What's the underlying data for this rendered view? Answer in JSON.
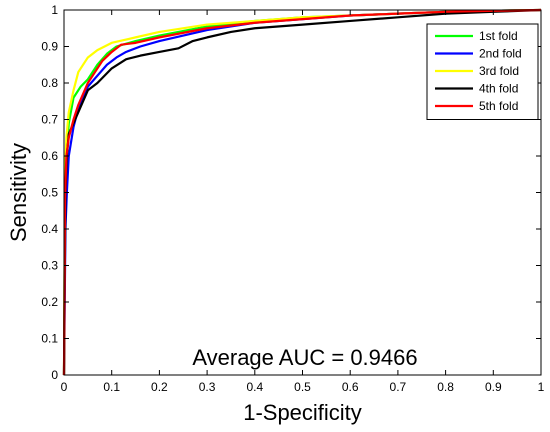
{
  "chart_data": {
    "type": "line",
    "title": "",
    "xlabel": "1-Specificity",
    "ylabel": "Sensitivity",
    "xlim": [
      0,
      1
    ],
    "ylim": [
      0,
      1
    ],
    "xticks": [
      0,
      0.1,
      0.2,
      0.3,
      0.4,
      0.5,
      0.6,
      0.7,
      0.8,
      0.9,
      1
    ],
    "yticks": [
      0,
      0.1,
      0.2,
      0.3,
      0.4,
      0.5,
      0.6,
      0.7,
      0.8,
      0.9,
      1
    ],
    "xtick_labels": [
      "0",
      "0.1",
      "0.2",
      "0.3",
      "0.4",
      "0.5",
      "0.6",
      "0.7",
      "0.8",
      "0.9",
      "1"
    ],
    "ytick_labels": [
      "0",
      "0.1",
      "0.2",
      "0.3",
      "0.4",
      "0.5",
      "0.6",
      "0.7",
      "0.8",
      "0.9",
      "1"
    ],
    "grid": false,
    "legend_position": "top-right",
    "annotation": "Average AUC = 0.9466",
    "series": [
      {
        "name": "1st fold",
        "color": "#00ff00",
        "x": [
          0,
          0.002,
          0.005,
          0.01,
          0.02,
          0.035,
          0.05,
          0.07,
          0.09,
          0.11,
          0.15,
          0.2,
          0.3,
          0.4,
          0.5,
          0.6,
          0.7,
          0.8,
          0.9,
          1.0
        ],
        "y": [
          0,
          0.45,
          0.6,
          0.69,
          0.76,
          0.79,
          0.81,
          0.85,
          0.88,
          0.9,
          0.915,
          0.93,
          0.955,
          0.97,
          0.98,
          0.985,
          0.99,
          0.995,
          0.998,
          1.0
        ]
      },
      {
        "name": "2nd fold",
        "color": "#0000ff",
        "x": [
          0,
          0.003,
          0.006,
          0.01,
          0.02,
          0.03,
          0.05,
          0.07,
          0.09,
          0.11,
          0.13,
          0.16,
          0.2,
          0.25,
          0.3,
          0.4,
          0.5,
          0.6,
          0.7,
          0.8,
          0.9,
          1.0
        ],
        "y": [
          0,
          0.4,
          0.5,
          0.6,
          0.68,
          0.73,
          0.79,
          0.82,
          0.85,
          0.87,
          0.885,
          0.9,
          0.915,
          0.93,
          0.945,
          0.965,
          0.975,
          0.985,
          0.99,
          0.995,
          0.998,
          1.0
        ]
      },
      {
        "name": "3rd fold",
        "color": "#ffff00",
        "x": [
          0,
          0.002,
          0.005,
          0.01,
          0.02,
          0.03,
          0.05,
          0.07,
          0.1,
          0.15,
          0.2,
          0.3,
          0.4,
          0.5,
          0.6,
          0.7,
          0.8,
          0.9,
          1.0
        ],
        "y": [
          0,
          0.55,
          0.65,
          0.72,
          0.78,
          0.83,
          0.87,
          0.89,
          0.91,
          0.925,
          0.94,
          0.96,
          0.97,
          0.98,
          0.985,
          0.99,
          0.995,
          0.998,
          1.0
        ]
      },
      {
        "name": "4th fold",
        "color": "#000000",
        "x": [
          0,
          0.003,
          0.006,
          0.01,
          0.02,
          0.03,
          0.05,
          0.07,
          0.1,
          0.13,
          0.16,
          0.2,
          0.24,
          0.27,
          0.3,
          0.35,
          0.4,
          0.5,
          0.6,
          0.7,
          0.8,
          0.9,
          1.0
        ],
        "y": [
          0,
          0.5,
          0.6,
          0.66,
          0.69,
          0.72,
          0.78,
          0.8,
          0.84,
          0.865,
          0.875,
          0.885,
          0.895,
          0.915,
          0.925,
          0.94,
          0.95,
          0.96,
          0.97,
          0.98,
          0.99,
          0.995,
          1.0
        ]
      },
      {
        "name": "5th fold",
        "color": "#ff0000",
        "x": [
          0,
          0.002,
          0.005,
          0.01,
          0.02,
          0.03,
          0.04,
          0.05,
          0.065,
          0.08,
          0.1,
          0.12,
          0.15,
          0.2,
          0.3,
          0.4,
          0.5,
          0.6,
          0.7,
          0.8,
          0.9,
          1.0
        ],
        "y": [
          0,
          0.48,
          0.6,
          0.65,
          0.7,
          0.74,
          0.77,
          0.8,
          0.83,
          0.86,
          0.885,
          0.905,
          0.91,
          0.925,
          0.95,
          0.965,
          0.975,
          0.985,
          0.99,
          0.995,
          0.998,
          1.0
        ]
      }
    ]
  }
}
